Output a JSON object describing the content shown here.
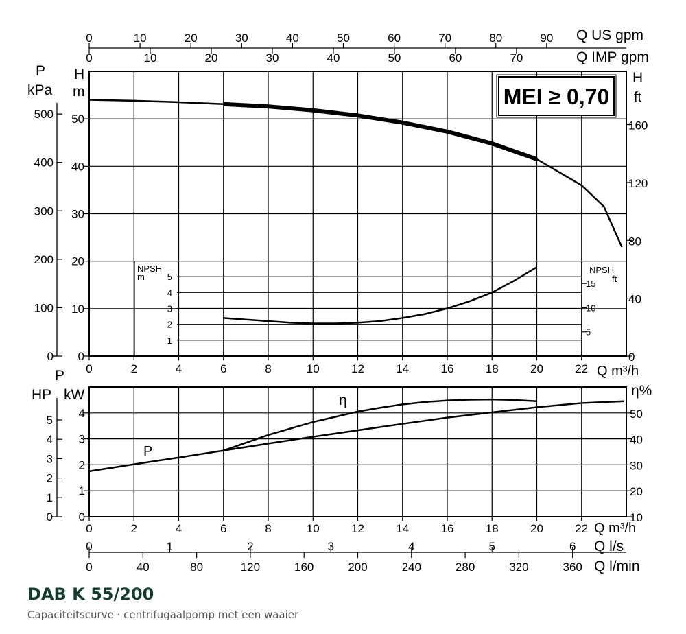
{
  "title": "DAB K 55/200",
  "subtitle": "Capaciteitscurve · centrifugaalpomp met een waaier",
  "badge": "MEI ≥ 0,70",
  "chart_data": [
    {
      "type": "line",
      "name": "head-npsh",
      "x_label": "Q m³/h",
      "x_ticks": [
        0,
        2,
        4,
        6,
        8,
        10,
        12,
        14,
        16,
        18,
        20,
        22
      ],
      "xlim": [
        0,
        24
      ],
      "top_axis_us": {
        "label": "Q US gpm",
        "ticks": [
          0,
          10,
          20,
          30,
          40,
          50,
          60,
          70,
          80,
          90
        ],
        "per_unit": 4.4029
      },
      "top_axis_imp": {
        "label": "Q IMP gpm",
        "ticks": [
          0,
          10,
          20,
          30,
          40,
          50,
          60,
          70
        ],
        "per_unit": 3.6662
      },
      "left_h": {
        "label1": "H",
        "label2": "m",
        "ticks": [
          0,
          10,
          20,
          30,
          40,
          50
        ],
        "ylim": [
          0,
          60
        ]
      },
      "left_p": {
        "label1": "P",
        "label2": "kPa",
        "ticks": [
          0,
          100,
          200,
          300,
          400,
          500
        ],
        "ylim": [
          0,
          588
        ]
      },
      "right_ft": {
        "label1": "H",
        "label2": "ft",
        "ticks": [
          0,
          40,
          80,
          120,
          160
        ],
        "ylim": [
          0,
          196.8
        ]
      },
      "npsh_m": {
        "label": "NPSH",
        "unit": "m",
        "ticks": [
          1,
          2,
          3,
          4,
          5
        ],
        "ylim": [
          0,
          6
        ]
      },
      "npsh_ft": {
        "label": "NPSH",
        "unit": "ft",
        "ticks": [
          5,
          10,
          15
        ],
        "ylim": [
          0,
          19.7
        ]
      },
      "head_curve": {
        "x": [
          0,
          2,
          4,
          6,
          8,
          10,
          12,
          14,
          16,
          18,
          20,
          22,
          23,
          23.8
        ],
        "y": [
          54,
          53.8,
          53.5,
          53.1,
          52.6,
          51.8,
          50.7,
          49.2,
          47.3,
          44.8,
          41.5,
          36,
          31.5,
          23
        ]
      },
      "head_operating": {
        "x": [
          6,
          8,
          10,
          12,
          14,
          16,
          18,
          20
        ],
        "y": [
          53.1,
          52.6,
          51.8,
          50.7,
          49.2,
          47.3,
          44.8,
          41.5
        ]
      },
      "npsh_curve": {
        "x": [
          6,
          7,
          8,
          9,
          10,
          11,
          12,
          13,
          14,
          15,
          16,
          17,
          18,
          19,
          20
        ],
        "y": [
          2.4,
          2.3,
          2.2,
          2.1,
          2.05,
          2.05,
          2.1,
          2.2,
          2.4,
          2.65,
          3.0,
          3.45,
          4.0,
          4.75,
          5.6
        ]
      }
    },
    {
      "type": "line",
      "name": "power-efficiency",
      "x_label": "Q m³/h",
      "x_ticks": [
        0,
        2,
        4,
        6,
        8,
        10,
        12,
        14,
        16,
        18,
        20,
        22
      ],
      "xlim": [
        0,
        24
      ],
      "left_hp": {
        "label": "HP",
        "ticks": [
          0,
          1,
          2,
          3,
          4,
          5
        ],
        "ylim": [
          0,
          6.7
        ]
      },
      "left_kw": {
        "label1": "P",
        "label2": "kW",
        "ticks": [
          0,
          1,
          2,
          3,
          4
        ],
        "ylim": [
          0,
          5
        ]
      },
      "right_eta": {
        "label": "η%",
        "ticks": [
          10,
          20,
          30,
          40,
          50
        ],
        "ylim": [
          10,
          60
        ]
      },
      "power_curve": {
        "label": "P",
        "x": [
          0,
          2,
          4,
          6,
          8,
          10,
          12,
          14,
          16,
          18,
          20,
          22,
          23.9
        ],
        "y": [
          1.75,
          2.02,
          2.28,
          2.55,
          2.82,
          3.08,
          3.33,
          3.58,
          3.82,
          4.02,
          4.22,
          4.38,
          4.45
        ]
      },
      "efficiency_curve": {
        "label": "η",
        "x": [
          6,
          7,
          8,
          9,
          10,
          11,
          12,
          13,
          14,
          15,
          16,
          17,
          18,
          19,
          20
        ],
        "y": [
          35.5,
          38.5,
          41.5,
          44,
          46.5,
          48.5,
          50.5,
          52,
          53.3,
          54.2,
          54.8,
          55.1,
          55.2,
          55,
          54.5
        ]
      },
      "bottom_axis_ls": {
        "label": "Q l/s",
        "ticks": [
          0,
          1,
          2,
          3,
          4,
          5,
          6
        ],
        "per_unit": 3.6
      },
      "bottom_axis_lmin": {
        "label": "Q l/min",
        "ticks": [
          0,
          40,
          80,
          120,
          160,
          200,
          240,
          280,
          320,
          360
        ],
        "per_unit": 0.06
      }
    }
  ]
}
